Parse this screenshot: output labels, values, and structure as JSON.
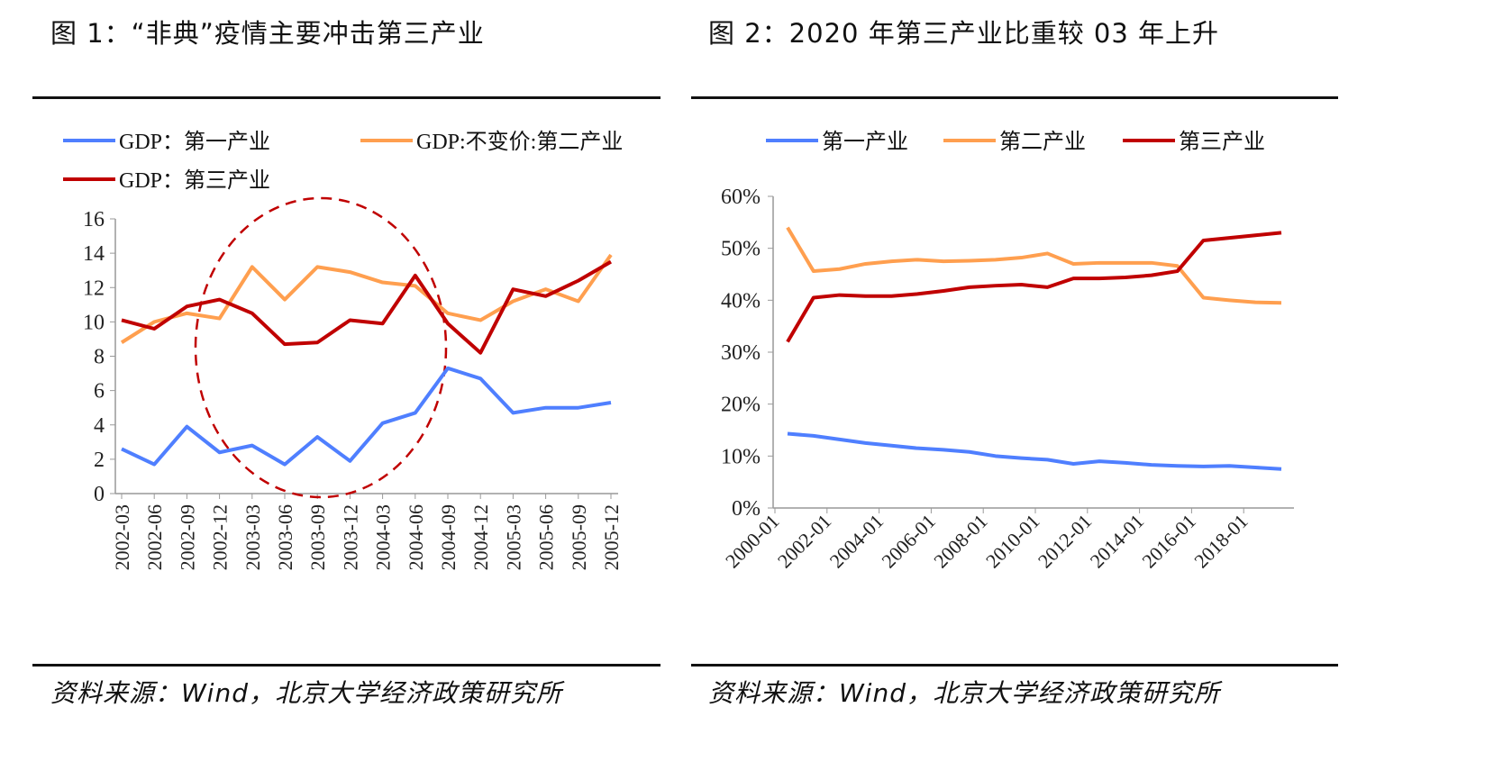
{
  "chart_data": [
    {
      "type": "line",
      "title": "图 1：“非典”疫情主要冲击第三产业",
      "source": "资料来源：Wind，北京大学经济政策研究所",
      "categories": [
        "2002-03",
        "2002-06",
        "2002-09",
        "2002-12",
        "2003-03",
        "2003-06",
        "2003-09",
        "2003-12",
        "2004-03",
        "2004-06",
        "2004-09",
        "2004-12",
        "2005-03",
        "2005-06",
        "2005-09",
        "2005-12"
      ],
      "ylim": [
        0,
        16
      ],
      "yticks": [
        "0",
        "2",
        "4",
        "6",
        "8",
        "10",
        "12",
        "14",
        "16"
      ],
      "legend": "top",
      "grid": false,
      "annotation": "dashed red ellipse highlighting 2002-12 to 2004-09",
      "series": [
        {
          "name": "GDP：第一产业",
          "color": "#4F7FFF",
          "values": [
            2.6,
            1.7,
            3.9,
            2.4,
            2.8,
            1.7,
            3.3,
            1.9,
            4.1,
            4.7,
            7.3,
            6.7,
            4.7,
            5.0,
            5.0,
            5.3
          ]
        },
        {
          "name": "GDP:不变价:第二产业",
          "color": "#FF9F4F",
          "values": [
            8.8,
            10.0,
            10.5,
            10.2,
            13.2,
            11.3,
            13.2,
            12.9,
            12.3,
            12.1,
            10.5,
            10.1,
            11.2,
            11.9,
            11.2,
            13.9
          ]
        },
        {
          "name": "GDP：第三产业",
          "color": "#C00000",
          "values": [
            10.1,
            9.6,
            10.9,
            11.3,
            10.5,
            8.7,
            8.8,
            10.1,
            9.9,
            12.7,
            9.9,
            8.2,
            11.9,
            11.5,
            12.4,
            13.5
          ]
        }
      ]
    },
    {
      "type": "line",
      "title": "图 2：2020 年第三产业比重较 03 年上升",
      "source": "资料来源：Wind，北京大学经济政策研究所",
      "x": [
        "2000",
        "2001",
        "2002",
        "2003",
        "2004",
        "2005",
        "2006",
        "2007",
        "2008",
        "2009",
        "2010",
        "2011",
        "2012",
        "2013",
        "2014",
        "2015",
        "2016",
        "2017",
        "2018",
        "2019"
      ],
      "xticks": [
        "2000-01",
        "2002-01",
        "2004-01",
        "2006-01",
        "2008-01",
        "2010-01",
        "2012-01",
        "2014-01",
        "2016-01",
        "2018-01"
      ],
      "ylim": [
        0,
        60
      ],
      "yticks": [
        "0%",
        "10%",
        "20%",
        "30%",
        "40%",
        "50%",
        "60%"
      ],
      "legend": "top",
      "grid": false,
      "series": [
        {
          "name": "第一产业",
          "color": "#4F7FFF",
          "values": [
            14.3,
            13.9,
            13.2,
            12.5,
            12.0,
            11.5,
            11.2,
            10.8,
            10.0,
            9.6,
            9.3,
            8.5,
            9.0,
            8.7,
            8.3,
            8.1,
            8.0,
            8.1,
            7.8,
            7.5
          ]
        },
        {
          "name": "第二产业",
          "color": "#FF9F4F",
          "values": [
            54.0,
            45.6,
            46.0,
            47.0,
            47.5,
            47.8,
            47.5,
            47.6,
            47.8,
            48.2,
            49.0,
            47.0,
            47.2,
            47.2,
            47.2,
            46.6,
            40.5,
            40.0,
            39.6,
            39.5
          ]
        },
        {
          "name": "第三产业",
          "color": "#C00000",
          "values": [
            32.0,
            40.5,
            41.0,
            40.8,
            40.8,
            41.2,
            41.8,
            42.5,
            42.8,
            43.0,
            42.5,
            44.2,
            44.2,
            44.4,
            44.8,
            45.6,
            51.5,
            52.0,
            52.5,
            53.0
          ]
        }
      ]
    }
  ]
}
